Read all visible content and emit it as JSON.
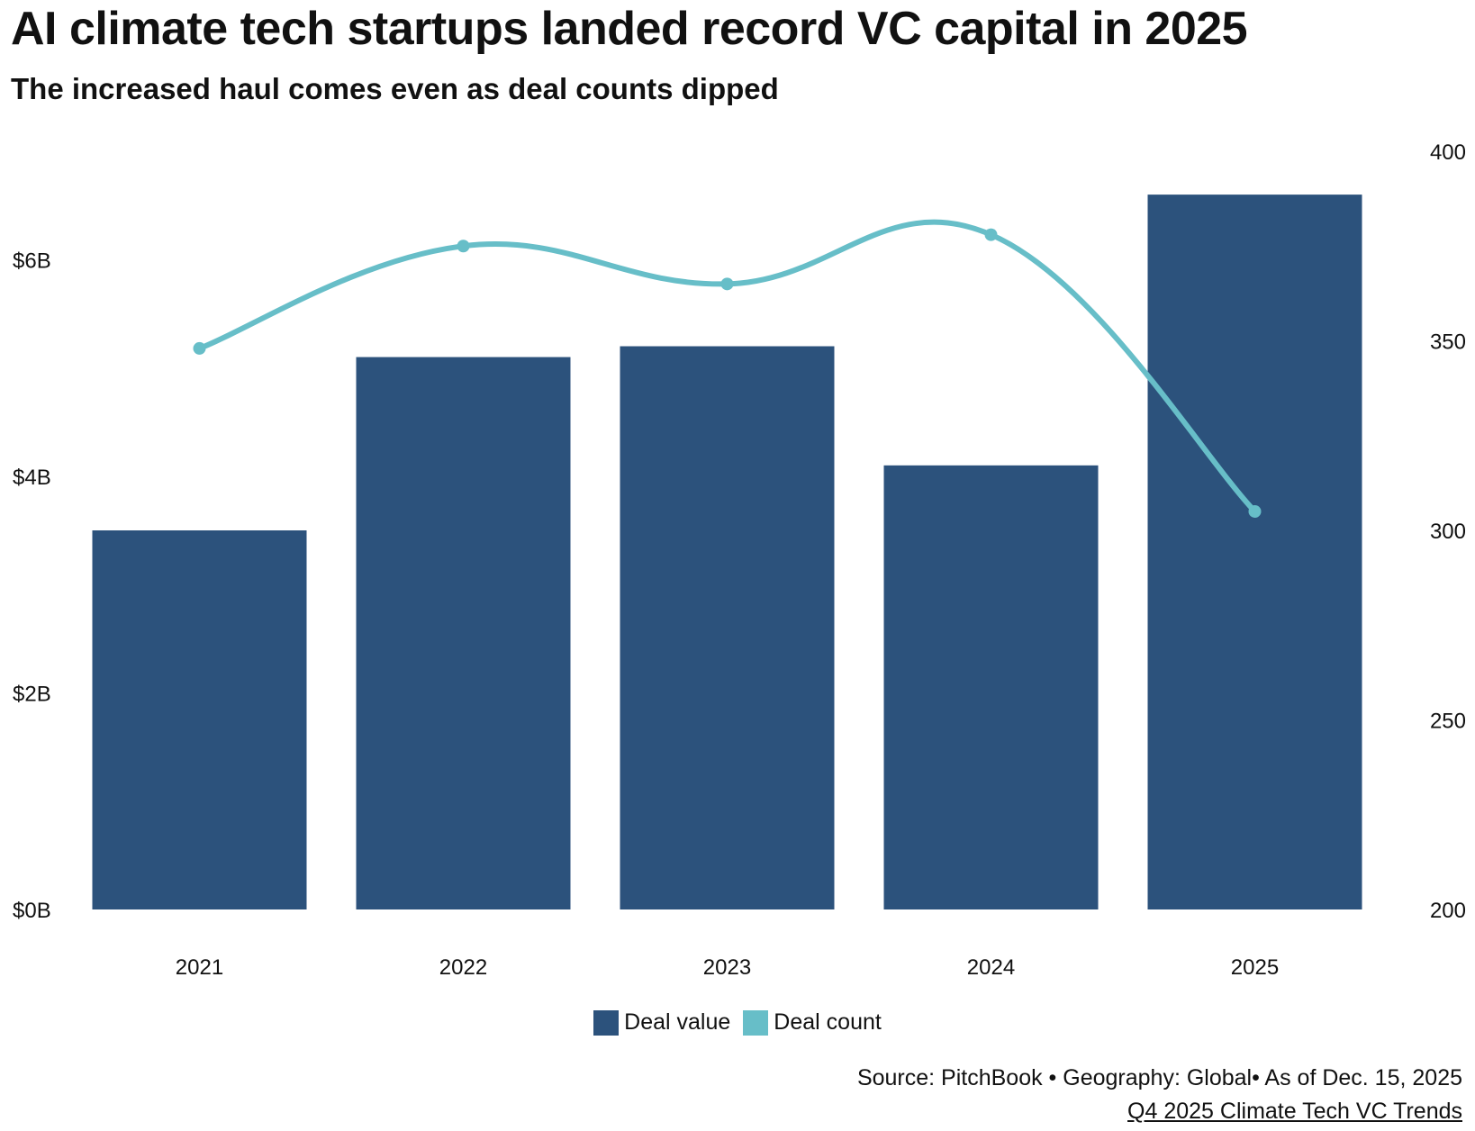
{
  "title": "AI climate tech startups landed record VC capital in 2025",
  "subtitle": "The increased haul comes even as deal counts dipped",
  "colors": {
    "bar": "#2c527c",
    "line": "#67bec8"
  },
  "chart_data": {
    "type": "bar",
    "title": "AI climate tech startups landed record VC capital in 2025",
    "subtitle": "The increased haul comes even as deal counts dipped",
    "categories": [
      "2021",
      "2022",
      "2023",
      "2024",
      "2025"
    ],
    "series": [
      {
        "name": "Deal value",
        "type": "bar",
        "axis": "left",
        "unit": "billion USD",
        "values": [
          3.5,
          5.1,
          5.2,
          4.1,
          6.6
        ]
      },
      {
        "name": "Deal count",
        "type": "line",
        "axis": "right",
        "values": [
          348,
          375,
          365,
          378,
          305
        ]
      }
    ],
    "y_left": {
      "ylim": [
        0,
        7
      ],
      "ticks": [
        0,
        2,
        4,
        6
      ],
      "tick_labels": [
        "$0B",
        "$2B",
        "$4B",
        "$6B"
      ]
    },
    "y_right": {
      "ylim": [
        200,
        400
      ],
      "ticks": [
        200,
        250,
        300,
        350,
        400
      ],
      "tick_labels": [
        "200",
        "250",
        "300",
        "350",
        "400"
      ]
    },
    "xlabel": "",
    "ylabel": "",
    "grid": false,
    "legend": "bottom-center"
  },
  "legend": {
    "items": [
      {
        "label": "Deal value"
      },
      {
        "label": "Deal count"
      }
    ]
  },
  "footer": {
    "source": "Source: PitchBook • Geography: Global• As of Dec. 15, 2025",
    "report_link": "Q4 2025 Climate Tech VC Trends"
  }
}
